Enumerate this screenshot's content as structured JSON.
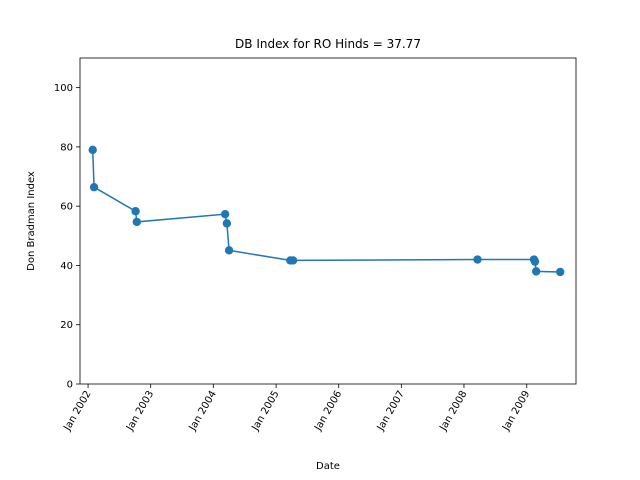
{
  "chart_data": {
    "type": "line",
    "title": "DB Index for RO Hinds = 37.77",
    "xlabel": "Date",
    "ylabel": "Don Bradman Index",
    "ylim": [
      0,
      110
    ],
    "yticks": [
      0,
      20,
      40,
      60,
      80,
      100
    ],
    "xlim": [
      "2001-11-15",
      "2009-10-15"
    ],
    "xticks": [
      "2002-01-01",
      "2003-01-01",
      "2004-01-01",
      "2005-01-01",
      "2006-01-01",
      "2007-01-01",
      "2008-01-01",
      "2009-01-01"
    ],
    "xtick_labels": [
      "Jan 2002",
      "Jan 2003",
      "Jan 2004",
      "Jan 2005",
      "Jan 2006",
      "Jan 2007",
      "Jan 2008",
      "Jan 2009"
    ],
    "grid": false,
    "color": "#1f77b4",
    "series": [
      {
        "points": [
          {
            "x": "2002-01-28",
            "y": 79.0
          },
          {
            "x": "2002-02-05",
            "y": 66.4
          },
          {
            "x": "2002-10-05",
            "y": 58.3
          },
          {
            "x": "2002-10-12",
            "y": 54.7
          },
          {
            "x": "2004-03-10",
            "y": 57.3
          },
          {
            "x": "2004-03-20",
            "y": 54.2
          },
          {
            "x": "2004-04-02",
            "y": 45.1
          },
          {
            "x": "2005-03-25",
            "y": 41.7
          },
          {
            "x": "2005-04-10",
            "y": 41.7
          },
          {
            "x": "2008-03-20",
            "y": 42.0
          },
          {
            "x": "2009-02-12",
            "y": 42.0
          },
          {
            "x": "2009-02-18",
            "y": 41.3
          },
          {
            "x": "2009-02-25",
            "y": 38.0
          },
          {
            "x": "2009-07-15",
            "y": 37.8
          }
        ]
      }
    ]
  }
}
